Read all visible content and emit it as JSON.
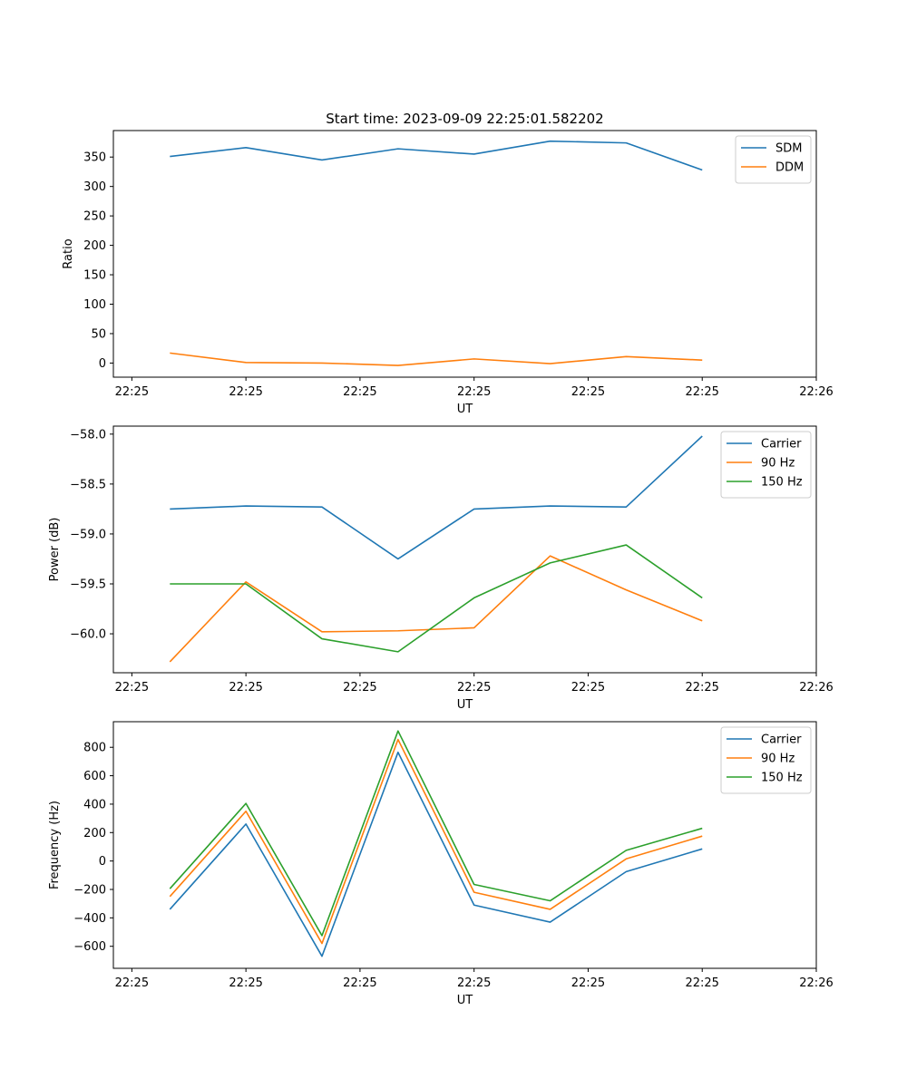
{
  "figure": {
    "title": "Start time: 2023-09-09 22:25:01.582202"
  },
  "colors": {
    "blue": "#1f77b4",
    "orange": "#ff7f0e",
    "green": "#2ca02c"
  },
  "chart_data": [
    {
      "type": "line",
      "title": "Start time: 2023-09-09 22:25:01.582202",
      "xlabel": "UT",
      "ylabel": "Ratio",
      "x": [
        1,
        2,
        3,
        4,
        5,
        6,
        7,
        8
      ],
      "xlim": [
        0.257,
        9.5
      ],
      "ylim": [
        -24,
        395
      ],
      "xticks": [
        0.5,
        2.0,
        3.5,
        5.0,
        6.5,
        8.0,
        9.5
      ],
      "xtick_labels": [
        "22:25",
        "22:25",
        "22:25",
        "22:25",
        "22:25",
        "22:25",
        "22:26"
      ],
      "yticks": [
        0,
        50,
        100,
        150,
        200,
        250,
        300,
        350
      ],
      "ytick_labels": [
        "0",
        "50",
        "100",
        "150",
        "200",
        "250",
        "300",
        "350"
      ],
      "legend_position": "top-right",
      "series": [
        {
          "name": "SDM",
          "color": "#1f77b4",
          "values": [
            351,
            366,
            345,
            364,
            355,
            377,
            374,
            328
          ]
        },
        {
          "name": "DDM",
          "color": "#ff7f0e",
          "values": [
            17,
            1,
            0,
            -4,
            7,
            -1,
            11,
            5
          ]
        }
      ]
    },
    {
      "type": "line",
      "xlabel": "UT",
      "ylabel": "Power (dB)",
      "x": [
        1,
        2,
        3,
        4,
        5,
        6,
        7,
        8
      ],
      "xlim": [
        0.257,
        9.5
      ],
      "ylim": [
        -60.39,
        -57.92
      ],
      "xticks": [
        0.5,
        2.0,
        3.5,
        5.0,
        6.5,
        8.0,
        9.5
      ],
      "xtick_labels": [
        "22:25",
        "22:25",
        "22:25",
        "22:25",
        "22:25",
        "22:25",
        "22:26"
      ],
      "yticks": [
        -60.0,
        -59.5,
        -59.0,
        -58.5,
        -58.0
      ],
      "ytick_labels": [
        "−60.0",
        "−59.5",
        "−59.0",
        "−58.5",
        "−58.0"
      ],
      "legend_position": "top-right",
      "series": [
        {
          "name": "Carrier",
          "color": "#1f77b4",
          "values": [
            -58.75,
            -58.72,
            -58.73,
            -59.25,
            -58.75,
            -58.72,
            -58.73,
            -58.02
          ]
        },
        {
          "name": "90 Hz",
          "color": "#ff7f0e",
          "values": [
            -60.28,
            -59.48,
            -59.98,
            -59.97,
            -59.94,
            -59.22,
            -59.56,
            -59.87
          ]
        },
        {
          "name": "150 Hz",
          "color": "#2ca02c",
          "values": [
            -59.5,
            -59.5,
            -60.05,
            -60.18,
            -59.64,
            -59.29,
            -59.11,
            -59.64
          ]
        }
      ]
    },
    {
      "type": "line",
      "xlabel": "UT",
      "ylabel": "Frequency (Hz)",
      "x": [
        1,
        2,
        3,
        4,
        5,
        6,
        7,
        8
      ],
      "xlim": [
        0.257,
        9.5
      ],
      "ylim": [
        -755,
        980
      ],
      "xticks": [
        0.5,
        2.0,
        3.5,
        5.0,
        6.5,
        8.0,
        9.5
      ],
      "xtick_labels": [
        "22:25",
        "22:25",
        "22:25",
        "22:25",
        "22:25",
        "22:25",
        "22:26"
      ],
      "yticks": [
        -600,
        -400,
        -200,
        0,
        200,
        400,
        600,
        800
      ],
      "ytick_labels": [
        "−600",
        "−400",
        "−200",
        "0",
        "200",
        "400",
        "600",
        "800"
      ],
      "legend_position": "top-right",
      "series": [
        {
          "name": "Carrier",
          "color": "#1f77b4",
          "values": [
            -340,
            260,
            -670,
            765,
            -310,
            -430,
            -75,
            85
          ]
        },
        {
          "name": "90 Hz",
          "color": "#ff7f0e",
          "values": [
            -250,
            350,
            -580,
            855,
            -220,
            -340,
            15,
            175
          ]
        },
        {
          "name": "150 Hz",
          "color": "#2ca02c",
          "values": [
            -195,
            405,
            -525,
            915,
            -165,
            -280,
            75,
            230
          ]
        }
      ]
    }
  ]
}
